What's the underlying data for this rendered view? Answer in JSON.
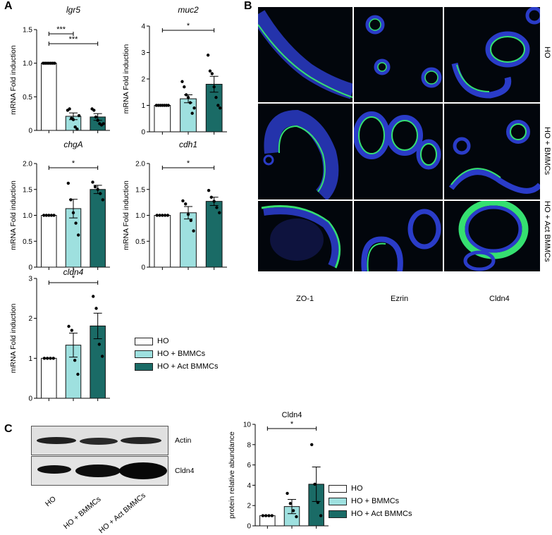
{
  "panels": {
    "A": "A",
    "B": "B",
    "C": "C"
  },
  "colors": {
    "HO": "#ffffff",
    "HO + BMMCs": "#9ee0df",
    "HO + Act BMMCs": "#1a6b66",
    "dapi": "#2a3cc8",
    "stain": "#35e070"
  },
  "legend_A": [
    "HO",
    "HO + BMMCs",
    "HO + Act BMMCs"
  ],
  "legend_C": [
    "HO",
    "HO + BMMCs",
    "HO + Act BMMCs"
  ],
  "microscopy": {
    "columns": [
      "ZO-1",
      "Ezrin",
      "Cldn4"
    ],
    "rows": [
      "HO",
      "HO + BMMCs",
      "HO + Act  BMMCs"
    ]
  },
  "western": {
    "bands": [
      "Actin",
      "Cldn4"
    ],
    "lanes": [
      "HO",
      "HO + BMMCs",
      "HO + Act BMMCs"
    ]
  },
  "chart_data": [
    {
      "type": "bar",
      "title": "lgr5",
      "ylabel": "mRNA Fold induction",
      "categories": [
        "HO",
        "HO + BMMCs",
        "HO + Act BMMCs"
      ],
      "values": [
        1.0,
        0.21,
        0.2
      ],
      "errors": [
        0,
        0.05,
        0.05
      ],
      "ylim": [
        0,
        1.5
      ],
      "yticks": [
        "0",
        "0.5",
        "1.0",
        "1.5"
      ],
      "points": [
        [
          1,
          1,
          1,
          1,
          1,
          1,
          1
        ],
        [
          0.3,
          0.32,
          0.18,
          0.16,
          0.05,
          0.02,
          0.22
        ],
        [
          0.32,
          0.3,
          0.2,
          0.15,
          0.1,
          0.08,
          0.1
        ]
      ],
      "sig": [
        {
          "from": 0,
          "to": 1,
          "label": "***"
        },
        {
          "from": 0,
          "to": 2,
          "label": "***"
        }
      ]
    },
    {
      "type": "bar",
      "title": "muc2",
      "ylabel": "mRNA Fold induction",
      "categories": [
        "HO",
        "HO + BMMCs",
        "HO + Act BMMCs"
      ],
      "values": [
        1.0,
        1.25,
        1.8
      ],
      "errors": [
        0,
        0.15,
        0.3
      ],
      "ylim": [
        0,
        4
      ],
      "yticks": [
        "0",
        "1",
        "2",
        "3",
        "4"
      ],
      "points": [
        [
          1,
          1,
          1,
          1,
          1,
          1,
          1
        ],
        [
          1.9,
          1.7,
          1.4,
          1.3,
          1.1,
          0.7,
          0.9
        ],
        [
          2.9,
          2.3,
          2.2,
          1.7,
          1.3,
          1.0,
          0.9
        ]
      ],
      "sig": [
        {
          "from": 0,
          "to": 2,
          "label": "*"
        }
      ]
    },
    {
      "type": "bar",
      "title": "chgA",
      "ylabel": "mRNA Fold induction",
      "categories": [
        "HO",
        "HO + BMMCs",
        "HO + Act BMMCs"
      ],
      "values": [
        1.0,
        1.13,
        1.5
      ],
      "errors": [
        0,
        0.18,
        0.08
      ],
      "ylim": [
        0,
        2.0
      ],
      "yticks": [
        "0",
        "0.5",
        "1.0",
        "1.5",
        "2.0"
      ],
      "points": [
        [
          1,
          1,
          1,
          1,
          1
        ],
        [
          1.62,
          1.3,
          1.05,
          0.85,
          0.62
        ],
        [
          1.64,
          1.55,
          1.5,
          1.42,
          1.3
        ]
      ],
      "sig": [
        {
          "from": 0,
          "to": 2,
          "label": "*"
        }
      ]
    },
    {
      "type": "bar",
      "title": "cdh1",
      "ylabel": "mRNA Fold induction",
      "categories": [
        "HO",
        "HO + BMMCs",
        "HO + Act BMMCs"
      ],
      "values": [
        1.0,
        1.05,
        1.27
      ],
      "errors": [
        0,
        0.12,
        0.08
      ],
      "ylim": [
        0,
        2.0
      ],
      "yticks": [
        "0",
        "0.5",
        "1.0",
        "1.5",
        "2.0"
      ],
      "points": [
        [
          1,
          1,
          1,
          1,
          1
        ],
        [
          1.28,
          1.22,
          1.02,
          0.9,
          0.7
        ],
        [
          1.48,
          1.35,
          1.27,
          1.15,
          1.05
        ]
      ],
      "sig": [
        {
          "from": 0,
          "to": 2,
          "label": "*"
        }
      ]
    },
    {
      "type": "bar",
      "title": "cldn4",
      "ylabel": "mRNA Fold induction",
      "categories": [
        "HO",
        "HO + BMMCs",
        "HO + Act BMMCs"
      ],
      "values": [
        1.0,
        1.33,
        1.81
      ],
      "errors": [
        0,
        0.3,
        0.32
      ],
      "ylim": [
        0,
        3
      ],
      "yticks": [
        "0",
        "1",
        "2",
        "3"
      ],
      "points": [
        [
          1,
          1,
          1,
          1
        ],
        [
          1.8,
          1.7,
          0.95,
          0.6
        ],
        [
          2.55,
          2.25,
          1.35,
          1.05
        ]
      ],
      "sig": [
        {
          "from": 0,
          "to": 2,
          "label": "*"
        }
      ]
    },
    {
      "type": "bar",
      "title": "Cldn4",
      "ylabel": "protein relative abundance",
      "categories": [
        "HO",
        "HO + BMMCs",
        "HO + Act BMMCs"
      ],
      "values": [
        1.0,
        1.9,
        4.1
      ],
      "errors": [
        0,
        0.7,
        1.7
      ],
      "ylim": [
        0,
        10
      ],
      "yticks": [
        "0",
        "2",
        "4",
        "6",
        "8",
        "10"
      ],
      "points": [
        [
          1,
          1,
          1,
          1
        ],
        [
          3.2,
          2.2,
          1.5,
          0.9
        ],
        [
          8.0,
          4.1,
          2.3,
          1.0
        ]
      ],
      "sig": [
        {
          "from": 0,
          "to": 2,
          "label": "*"
        }
      ]
    }
  ]
}
